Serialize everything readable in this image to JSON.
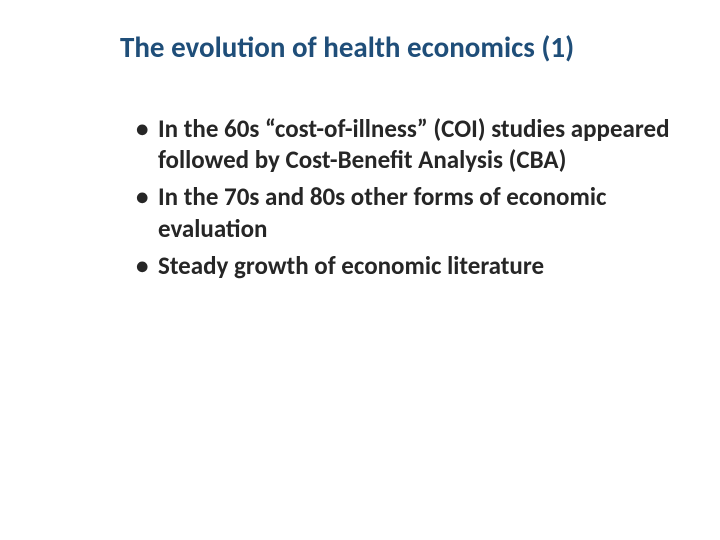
{
  "slide": {
    "title": "The evolution of health economics (1)",
    "title_color": "#1f4e79",
    "title_fontsize": 29,
    "background_color": "#ffffff",
    "bullets": [
      {
        "text": "In the 60s “cost-of-illness” (COI) studies appeared followed by Cost-Benefit Analysis (CBA)"
      },
      {
        "text": "In the 70s and 80s other forms of economic evaluation"
      },
      {
        "text": "Steady growth of economic literature"
      }
    ],
    "bullet_color": "#262626",
    "bullet_fontsize": 25
  }
}
